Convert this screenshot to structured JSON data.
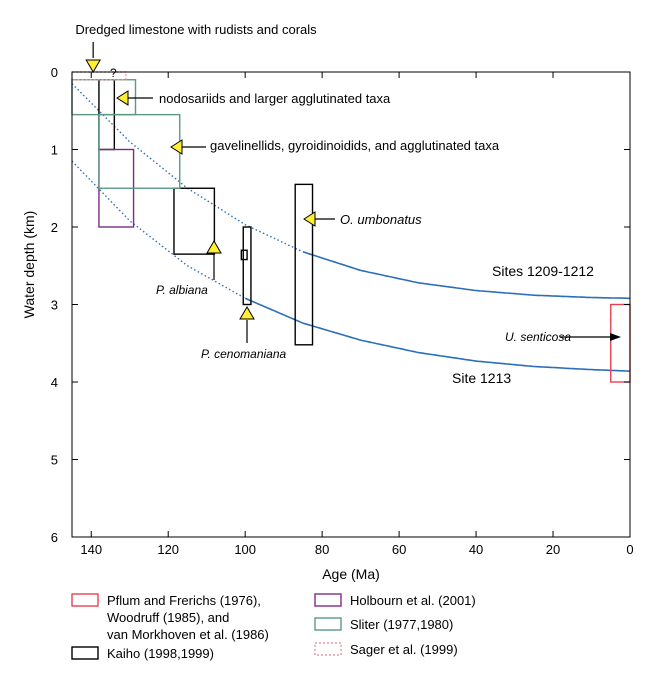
{
  "chart_data": {
    "type": "other",
    "title": "",
    "xlabel": "Age (Ma)",
    "ylabel": "Water depth (km)",
    "xlim": [
      145,
      0
    ],
    "ylim": [
      0,
      6
    ],
    "x_reversed": true,
    "y_reversed": true,
    "grid": false,
    "xticks": [
      140,
      120,
      100,
      80,
      60,
      40,
      20,
      0
    ],
    "yticks": [
      0,
      1,
      2,
      3,
      4,
      5,
      6
    ],
    "colors": {
      "curve": "#2c6fb8",
      "pflum": "#e8414f",
      "holbourn": "#7e2b86",
      "sliter": "#5a9a82",
      "sager": "#e89aa8",
      "kaiho": "#000000",
      "arrow_fill": "#ffee33"
    },
    "curves": [
      {
        "name": "Sites 1209-1212",
        "x": [
          145,
          130,
          115,
          100,
          85,
          70,
          55,
          40,
          25,
          10,
          0
        ],
        "y": [
          0.15,
          0.9,
          1.5,
          1.97,
          2.32,
          2.56,
          2.72,
          2.82,
          2.88,
          2.91,
          2.92
        ],
        "dotted_before": 85
      },
      {
        "name": "Site 1213",
        "x": [
          145,
          130,
          115,
          100,
          85,
          70,
          55,
          40,
          25,
          10,
          0
        ],
        "y": [
          1.15,
          1.92,
          2.5,
          2.92,
          3.24,
          3.46,
          3.62,
          3.73,
          3.8,
          3.84,
          3.86
        ],
        "dotted_before": 100
      }
    ],
    "ranges": [
      {
        "source": "Kaiho (1998,1999)",
        "x": [
          138,
          134
        ],
        "y": [
          0.1,
          1.0
        ]
      },
      {
        "source": "Kaiho (1998,1999)",
        "x": [
          118.5,
          108
        ],
        "y": [
          1.5,
          2.35
        ],
        "label": "P. albiana"
      },
      {
        "source": "Kaiho (1998,1999)",
        "x": [
          100.5,
          98.5
        ],
        "y": [
          2.0,
          3.0
        ],
        "label": "P. cenomaniana"
      },
      {
        "source": "Kaiho (1998,1999)",
        "x": [
          101,
          99.5
        ],
        "y": [
          2.3,
          2.42
        ]
      },
      {
        "source": "Kaiho (1998,1999)",
        "x": [
          87,
          82.5
        ],
        "y": [
          1.45,
          3.52
        ],
        "label": "O. umbonatus"
      },
      {
        "source": "Holbourn et al. (2001)",
        "x": [
          138,
          129
        ],
        "y": [
          1.0,
          2.0
        ]
      },
      {
        "source": "Sliter (1977,1980)",
        "x": [
          145,
          128.5
        ],
        "y": [
          0.1,
          0.55
        ]
      },
      {
        "source": "Sliter (1977,1980)",
        "x": [
          138,
          117
        ],
        "y": [
          0.55,
          1.5
        ]
      },
      {
        "source": "Sager et al. (1999)",
        "x": [
          145,
          131
        ],
        "y": [
          0.0,
          0.1
        ]
      },
      {
        "source": "Pflum and Frerichs (1976), Woodruff (1985), and van Morkhoven et al. (1986)",
        "x": [
          5,
          0
        ],
        "y": [
          3.0,
          4.0
        ],
        "label": "U. senticosa"
      }
    ],
    "annotations": {
      "dredged": "Dredged limestone with rudists and corals",
      "question": "?",
      "nodosariids": "nodosariids and larger agglutinated taxa",
      "gavelinellids": "gavelinellids, gyroidinoidids, and agglutinated taxa",
      "o_umbonatus": "O. umbonatus",
      "p_albiana": "P. albiana",
      "p_cenomaniana": "P. cenomaniana",
      "u_senticosa": "U. senticosa",
      "sites_1209": "Sites 1209-1212",
      "site_1213": "Site 1213"
    },
    "legend": [
      {
        "text": [
          "Pflum and Frerichs (1976),",
          "Woodruff (1985), and",
          "van Morkhoven et al. (1986)"
        ],
        "color": "#e8414f",
        "dashed": false
      },
      {
        "text": [
          "Kaiho (1998,1999)"
        ],
        "color": "#000000",
        "dashed": false
      },
      {
        "text": [
          "Holbourn et al. (2001)"
        ],
        "color": "#7e2b86",
        "dashed": false
      },
      {
        "text": [
          "Sliter (1977,1980)"
        ],
        "color": "#5a9a82",
        "dashed": false
      },
      {
        "text": [
          "Sager et al. (1999)"
        ],
        "color": "#e89aa8",
        "dashed": true
      }
    ]
  }
}
